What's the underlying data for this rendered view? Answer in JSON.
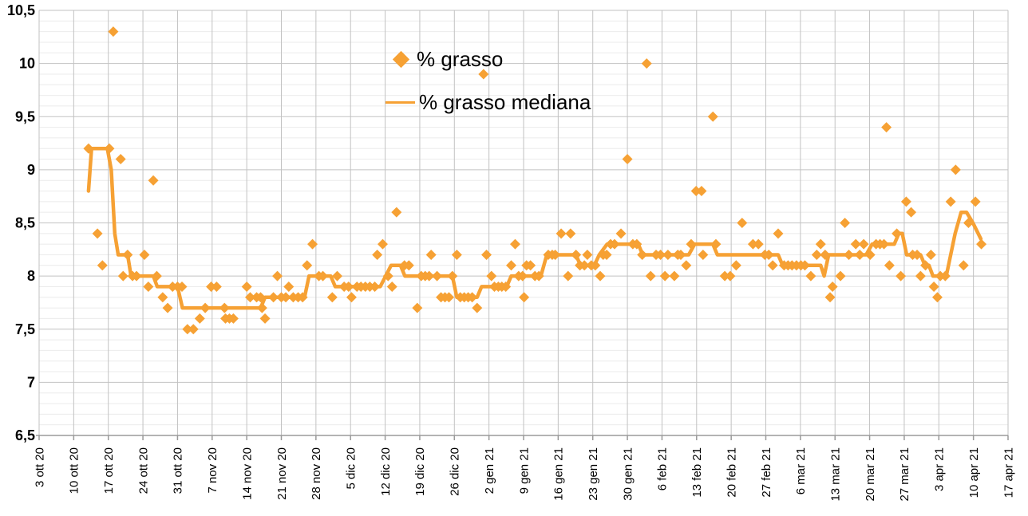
{
  "chart_data": {
    "type": "scatter",
    "title": "",
    "legend_position": "top-center-inside",
    "grid": "on",
    "legend": [
      {
        "label": "% grasso",
        "marker": "diamond"
      },
      {
        "label": "% grasso mediana",
        "marker": "line"
      }
    ],
    "colors": {
      "series": "#F6A134",
      "grid_minor": "#EBEBEB",
      "grid_major": "#C2C2C2",
      "axis": "#9A9A9A",
      "text": "#000000",
      "background": "#FFFFFF"
    },
    "y_axis": {
      "min": 6.5,
      "max": 10.5,
      "major_step": 0.5,
      "minor_step": 0.1,
      "tick_labels": [
        "10,5",
        "10",
        "9,5",
        "9",
        "8,5",
        "8",
        "7,5",
        "7",
        "6,5"
      ]
    },
    "x_axis": {
      "tick_labels": [
        "3 ott 20",
        "10 ott 20",
        "17 ott 20",
        "24 ott 20",
        "31 ott 20",
        "7 nov 20",
        "14 nov 20",
        "21 nov 20",
        "28 nov 20",
        "5 dic 20",
        "12 dic 20",
        "19 dic 20",
        "26 dic 20",
        "2 gen 21",
        "9 gen 21",
        "16 gen 21",
        "23 gen 21",
        "30 gen 21",
        "6 feb 21",
        "13 feb 21",
        "20 feb 21",
        "27 feb 21",
        "6 mar 21",
        "13 mar 21",
        "20 mar 21",
        "27 mar 21",
        "3 apr 21",
        "10 apr 21",
        "17 apr 21"
      ],
      "days_per_tick": 7,
      "total_days": 196
    },
    "series": [
      {
        "name": "% grasso",
        "type": "scatter",
        "points": [
          [
            10,
            9.2
          ],
          [
            11.8,
            8.4
          ],
          [
            12.8,
            8.1
          ],
          [
            14.2,
            9.2
          ],
          [
            15,
            10.3
          ],
          [
            16.5,
            9.1
          ],
          [
            17,
            8.0
          ],
          [
            17.9,
            8.2
          ],
          [
            18.9,
            8.0
          ],
          [
            19.7,
            8.0
          ],
          [
            21.3,
            8.2
          ],
          [
            22.1,
            7.9
          ],
          [
            23.1,
            8.9
          ],
          [
            23.8,
            8.0
          ],
          [
            25,
            7.8
          ],
          [
            26,
            7.7
          ],
          [
            27,
            7.9
          ],
          [
            28,
            7.9
          ],
          [
            28.9,
            7.9
          ],
          [
            30,
            7.5
          ],
          [
            31.2,
            7.5
          ],
          [
            32.5,
            7.6
          ],
          [
            33.6,
            7.7
          ],
          [
            34.8,
            7.9
          ],
          [
            35.9,
            7.9
          ],
          [
            37.5,
            7.7
          ],
          [
            37.7,
            7.6
          ],
          [
            38.5,
            7.6
          ],
          [
            39.3,
            7.6
          ],
          [
            42,
            7.9
          ],
          [
            42.7,
            7.8
          ],
          [
            44,
            7.8
          ],
          [
            44.8,
            7.8
          ],
          [
            45.1,
            7.7
          ],
          [
            45.7,
            7.6
          ],
          [
            47.4,
            7.8
          ],
          [
            48.2,
            8.0
          ],
          [
            49,
            7.8
          ],
          [
            49.9,
            7.8
          ],
          [
            50.5,
            7.9
          ],
          [
            51.4,
            7.8
          ],
          [
            52.4,
            7.8
          ],
          [
            53.3,
            7.8
          ],
          [
            54.2,
            8.1
          ],
          [
            55.3,
            8.3
          ],
          [
            56.6,
            8.0
          ],
          [
            57.4,
            8.0
          ],
          [
            59.3,
            7.8
          ],
          [
            60.3,
            8.0
          ],
          [
            61.7,
            7.9
          ],
          [
            62.6,
            7.9
          ],
          [
            63.2,
            7.8
          ],
          [
            64.3,
            7.9
          ],
          [
            65.1,
            7.9
          ],
          [
            66,
            7.9
          ],
          [
            66.9,
            7.9
          ],
          [
            67.9,
            7.9
          ],
          [
            68.4,
            8.2
          ],
          [
            69.5,
            8.3
          ],
          [
            70.6,
            8.0
          ],
          [
            71.4,
            7.9
          ],
          [
            72.3,
            8.6
          ],
          [
            73.9,
            8.1
          ],
          [
            74.8,
            8.1
          ],
          [
            76.5,
            7.7
          ],
          [
            77.3,
            8.0
          ],
          [
            78.1,
            8.0
          ],
          [
            78.9,
            8.0
          ],
          [
            79.3,
            8.2
          ],
          [
            80.5,
            8.0
          ],
          [
            81.3,
            7.8
          ],
          [
            82.1,
            7.8
          ],
          [
            82.9,
            7.8
          ],
          [
            83.6,
            8.0
          ],
          [
            84.5,
            8.2
          ],
          [
            85.2,
            7.8
          ],
          [
            86,
            7.8
          ],
          [
            86.8,
            7.8
          ],
          [
            87.6,
            7.8
          ],
          [
            88.6,
            7.7
          ],
          [
            89.9,
            9.9
          ],
          [
            90.5,
            8.2
          ],
          [
            91.5,
            8.0
          ],
          [
            92.1,
            7.9
          ],
          [
            92.9,
            7.9
          ],
          [
            93.6,
            7.9
          ],
          [
            94.4,
            7.9
          ],
          [
            95.5,
            8.1
          ],
          [
            96.3,
            8.3
          ],
          [
            97,
            8.0
          ],
          [
            97.8,
            8.0
          ],
          [
            98.1,
            7.8
          ],
          [
            98.6,
            8.1
          ],
          [
            99.4,
            8.1
          ],
          [
            100.3,
            8.0
          ],
          [
            101.1,
            8.0
          ],
          [
            103,
            8.2
          ],
          [
            103.8,
            8.2
          ],
          [
            104.4,
            8.2
          ],
          [
            105.6,
            8.4
          ],
          [
            107,
            8.0
          ],
          [
            107.5,
            8.4
          ],
          [
            108.6,
            8.2
          ],
          [
            109.4,
            8.1
          ],
          [
            110.3,
            8.1
          ],
          [
            110.9,
            8.2
          ],
          [
            111.7,
            8.1
          ],
          [
            112.5,
            8.1
          ],
          [
            113.5,
            8.0
          ],
          [
            114.1,
            8.2
          ],
          [
            114.8,
            8.2
          ],
          [
            115.6,
            8.3
          ],
          [
            116.4,
            8.3
          ],
          [
            117.7,
            8.4
          ],
          [
            119,
            9.1
          ],
          [
            120.1,
            8.3
          ],
          [
            120.9,
            8.3
          ],
          [
            122,
            8.2
          ],
          [
            122.9,
            10.0
          ],
          [
            123.7,
            8.0
          ],
          [
            124.8,
            8.2
          ],
          [
            125.7,
            8.2
          ],
          [
            126.6,
            8.0
          ],
          [
            127.2,
            8.2
          ],
          [
            128.5,
            8.0
          ],
          [
            129.2,
            8.2
          ],
          [
            129.8,
            8.2
          ],
          [
            130.9,
            8.1
          ],
          [
            131.9,
            8.3
          ],
          [
            132.9,
            8.8
          ],
          [
            134,
            8.8
          ],
          [
            134.3,
            8.2
          ],
          [
            136.3,
            9.5
          ],
          [
            136.9,
            8.3
          ],
          [
            138.7,
            8.0
          ],
          [
            139.8,
            8.0
          ],
          [
            141,
            8.1
          ],
          [
            142.2,
            8.5
          ],
          [
            144.4,
            8.3
          ],
          [
            145.5,
            8.3
          ],
          [
            146.8,
            8.2
          ],
          [
            147.6,
            8.2
          ],
          [
            148.4,
            8.1
          ],
          [
            149.5,
            8.4
          ],
          [
            150.7,
            8.1
          ],
          [
            151.5,
            8.1
          ],
          [
            152.3,
            8.1
          ],
          [
            153.2,
            8.1
          ],
          [
            154.1,
            8.1
          ],
          [
            154.9,
            8.1
          ],
          [
            156.1,
            8.0
          ],
          [
            157.3,
            8.2
          ],
          [
            158.1,
            8.3
          ],
          [
            159,
            8.2
          ],
          [
            160,
            7.8
          ],
          [
            160.5,
            7.9
          ],
          [
            162.1,
            8.0
          ],
          [
            163,
            8.5
          ],
          [
            163.8,
            8.2
          ],
          [
            165.2,
            8.3
          ],
          [
            166,
            8.2
          ],
          [
            166.8,
            8.3
          ],
          [
            168.1,
            8.2
          ],
          [
            169.3,
            8.3
          ],
          [
            170.1,
            8.3
          ],
          [
            170.9,
            8.3
          ],
          [
            171.4,
            9.4
          ],
          [
            172,
            8.1
          ],
          [
            173.5,
            8.4
          ],
          [
            174.3,
            8.0
          ],
          [
            175.4,
            8.7
          ],
          [
            176.4,
            8.6
          ],
          [
            176.7,
            8.2
          ],
          [
            177.6,
            8.2
          ],
          [
            178.3,
            8.0
          ],
          [
            179.3,
            8.1
          ],
          [
            180.4,
            8.2
          ],
          [
            181,
            7.9
          ],
          [
            181.7,
            7.8
          ],
          [
            182.3,
            8.0
          ],
          [
            183.3,
            8.0
          ],
          [
            184.4,
            8.7
          ],
          [
            185.4,
            9.0
          ],
          [
            187,
            8.1
          ],
          [
            188,
            8.5
          ],
          [
            189.4,
            8.7
          ],
          [
            190.6,
            8.3
          ]
        ]
      },
      {
        "name": "% grasso mediana",
        "type": "line",
        "points": [
          [
            10,
            8.8
          ],
          [
            10.6,
            9.2
          ],
          [
            13.8,
            9.2
          ],
          [
            14.6,
            9.0
          ],
          [
            15.3,
            8.4
          ],
          [
            16,
            8.2
          ],
          [
            17.9,
            8.2
          ],
          [
            18.6,
            8.0
          ],
          [
            23.1,
            8.0
          ],
          [
            23.9,
            7.9
          ],
          [
            28,
            7.9
          ],
          [
            29,
            7.7
          ],
          [
            44.8,
            7.7
          ],
          [
            45.7,
            7.8
          ],
          [
            53.7,
            7.8
          ],
          [
            54.6,
            8.0
          ],
          [
            59,
            8.0
          ],
          [
            59.9,
            7.9
          ],
          [
            69,
            7.9
          ],
          [
            70.1,
            8.0
          ],
          [
            71.2,
            8.1
          ],
          [
            73.1,
            8.1
          ],
          [
            74,
            8.0
          ],
          [
            83.6,
            8.0
          ],
          [
            84.5,
            7.8
          ],
          [
            88.6,
            7.8
          ],
          [
            89.5,
            7.9
          ],
          [
            94.6,
            7.9
          ],
          [
            95.5,
            8.0
          ],
          [
            101.5,
            8.0
          ],
          [
            102.7,
            8.2
          ],
          [
            108.6,
            8.2
          ],
          [
            109.5,
            8.1
          ],
          [
            112.3,
            8.1
          ],
          [
            113.3,
            8.2
          ],
          [
            114.9,
            8.3
          ],
          [
            121.2,
            8.3
          ],
          [
            122.1,
            8.2
          ],
          [
            131.4,
            8.2
          ],
          [
            132.6,
            8.3
          ],
          [
            136.3,
            8.3
          ],
          [
            137.2,
            8.2
          ],
          [
            149.5,
            8.2
          ],
          [
            150.4,
            8.1
          ],
          [
            158.1,
            8.1
          ],
          [
            158.8,
            8.0
          ],
          [
            159.7,
            8.2
          ],
          [
            167.3,
            8.2
          ],
          [
            168.5,
            8.3
          ],
          [
            173,
            8.3
          ],
          [
            173.9,
            8.4
          ],
          [
            174.6,
            8.4
          ],
          [
            175.5,
            8.2
          ],
          [
            178.3,
            8.2
          ],
          [
            179.2,
            8.1
          ],
          [
            180,
            8.1
          ],
          [
            180.8,
            8.0
          ],
          [
            183.5,
            8.0
          ],
          [
            185.3,
            8.4
          ],
          [
            186.5,
            8.6
          ],
          [
            187.6,
            8.6
          ],
          [
            188.9,
            8.5
          ],
          [
            190.5,
            8.35
          ]
        ]
      }
    ]
  }
}
